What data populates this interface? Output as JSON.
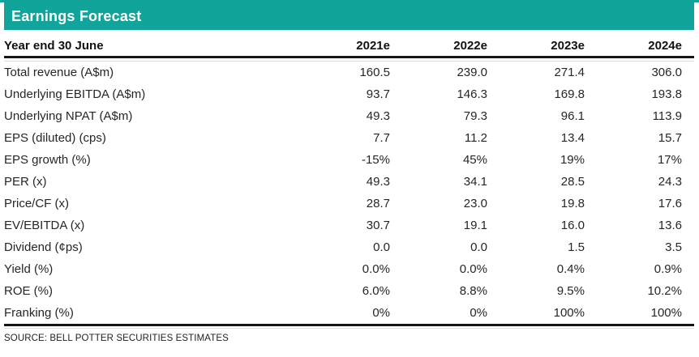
{
  "header": {
    "title": "Earnings Forecast"
  },
  "table": {
    "row_header_label": "Year end 30 June",
    "columns": [
      "2021e",
      "2022e",
      "2023e",
      "2024e"
    ],
    "rows": [
      {
        "label": "Total revenue (A$m)",
        "values": [
          "160.5",
          "239.0",
          "271.4",
          "306.0"
        ]
      },
      {
        "label": "Underlying EBITDA (A$m)",
        "values": [
          "93.7",
          "146.3",
          "169.8",
          "193.8"
        ]
      },
      {
        "label": "Underlying NPAT (A$m)",
        "values": [
          "49.3",
          "79.3",
          "96.1",
          "113.9"
        ]
      },
      {
        "label": "EPS (diluted) (cps)",
        "values": [
          "7.7",
          "11.2",
          "13.4",
          "15.7"
        ]
      },
      {
        "label": "EPS growth (%)",
        "values": [
          "-15%",
          "45%",
          "19%",
          "17%"
        ]
      },
      {
        "label": "PER (x)",
        "values": [
          "49.3",
          "34.1",
          "28.5",
          "24.3"
        ]
      },
      {
        "label": "Price/CF (x)",
        "values": [
          "28.7",
          "23.0",
          "19.8",
          "17.6"
        ]
      },
      {
        "label": "EV/EBITDA (x)",
        "values": [
          "30.7",
          "19.1",
          "16.0",
          "13.6"
        ]
      },
      {
        "label": "Dividend (¢ps)",
        "values": [
          "0.0",
          "0.0",
          "1.5",
          "3.5"
        ]
      },
      {
        "label": "Yield (%)",
        "values": [
          "0.0%",
          "0.0%",
          "0.4%",
          "0.9%"
        ]
      },
      {
        "label": "ROE (%)",
        "values": [
          "6.0%",
          "8.8%",
          "9.5%",
          "10.2%"
        ]
      },
      {
        "label": "Franking (%)",
        "values": [
          "0%",
          "0%",
          "100%",
          "100%"
        ]
      }
    ],
    "source": "SOURCE: BELL POTTER SECURITIES ESTIMATES"
  },
  "colors": {
    "accent_teal": "#11A49A"
  }
}
